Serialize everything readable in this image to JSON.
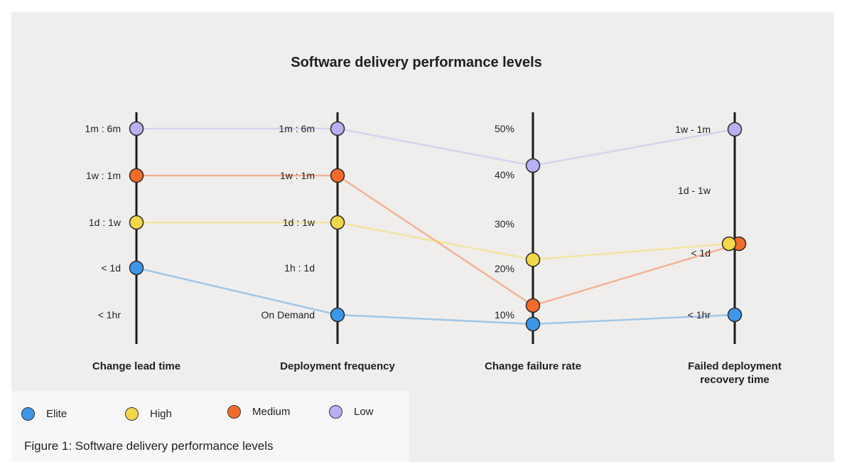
{
  "chart_data": {
    "type": "parallel-coordinates",
    "title": "Software delivery performance levels",
    "axes": [
      {
        "name": "Change lead time",
        "tick_labels": [
          "1m : 6m",
          "1w : 1m",
          "1d : 1w",
          "< 1d",
          "< 1hr"
        ]
      },
      {
        "name": "Deployment frequency",
        "tick_labels": [
          "1m : 6m",
          "1w : 1m",
          "1d : 1w",
          "1h : 1d",
          "On Demand"
        ]
      },
      {
        "name": "Change failure rate",
        "tick_labels": [
          "50%",
          "40%",
          "30%",
          "20%",
          "10%"
        ]
      },
      {
        "name": "Failed deployment recovery time",
        "tick_labels": [
          "1w - 1m",
          "1d - 1w",
          "< 1d",
          "< 1hr"
        ]
      }
    ],
    "series": [
      {
        "name": "Low",
        "color": "#b7b0f2",
        "values": [
          "1m : 6m",
          "1m : 6m",
          "42%",
          "1w - 1m"
        ]
      },
      {
        "name": "Medium",
        "color": "#f26b2a",
        "values": [
          "1w : 1m",
          "1w : 1m",
          "12%",
          "< 1d"
        ]
      },
      {
        "name": "High",
        "color": "#f3d749",
        "values": [
          "1d : 1w",
          "1d : 1w",
          "22%",
          "< 1d"
        ]
      },
      {
        "name": "Elite",
        "color": "#3d97e8",
        "values": [
          "< 1d",
          "On Demand",
          "8%",
          "< 1hr"
        ]
      }
    ],
    "legend": {
      "position": "bottom-left",
      "order": [
        "Elite",
        "High",
        "Medium",
        "Low"
      ]
    }
  },
  "caption": "Figure 1: Software delivery performance levels"
}
